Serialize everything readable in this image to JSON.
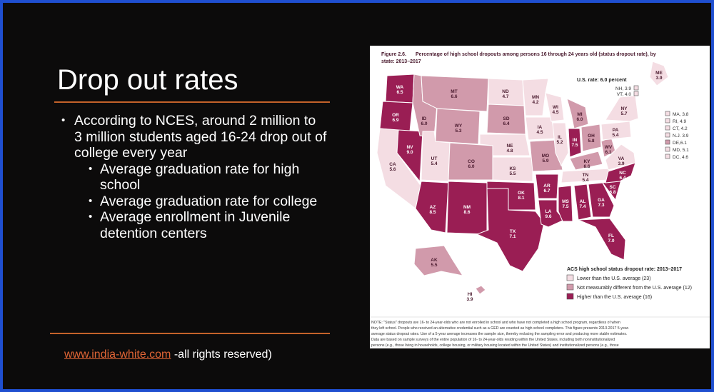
{
  "slide": {
    "title": "Drop out rates",
    "bullets": {
      "main": "According to NCES,  around 2 million to 3 million students aged 16-24 drop out of college every year",
      "sub": [
        "Average graduation rate for high school",
        "Average graduation rate for college",
        "Average enrollment in Juvenile detention centers"
      ]
    },
    "footer": {
      "link": "www.india-white.com",
      "text": " -all rights reserved)"
    }
  },
  "figure": {
    "caption_label": "Figure 2.6.",
    "caption_line1": "Percentage of high school dropouts among persons 16 through 24 years old (status dropout rate), by",
    "caption_line2": "state: 2013–2017",
    "us_rate": "U.S. rate: 6.0 percent",
    "legend_title": "ACS high school status dropout rate: 2013–2017",
    "legend_items": [
      "Lower than the U.S. average (23)",
      "Not measurably different from the U.S. average (12)",
      "Higher than the U.S. average (16)"
    ],
    "colors": {
      "lower": "#f4dde3",
      "not_different": "#d19aab",
      "higher": "#9a1e54",
      "border": "#ffffff"
    },
    "states": [
      {
        "abbr": "WA",
        "value": "6.5",
        "level": "higher"
      },
      {
        "abbr": "OR",
        "value": "6.9",
        "level": "higher"
      },
      {
        "abbr": "CA",
        "value": "5.6",
        "level": "lower"
      },
      {
        "abbr": "NV",
        "value": "9.0",
        "level": "higher"
      },
      {
        "abbr": "ID",
        "value": "6.0",
        "level": "not_different"
      },
      {
        "abbr": "MT",
        "value": "6.6",
        "level": "not_different"
      },
      {
        "abbr": "WY",
        "value": "5.3",
        "level": "not_different"
      },
      {
        "abbr": "UT",
        "value": "5.4",
        "level": "lower"
      },
      {
        "abbr": "AZ",
        "value": "8.5",
        "level": "higher"
      },
      {
        "abbr": "CO",
        "value": "6.0",
        "level": "not_different"
      },
      {
        "abbr": "NM",
        "value": "8.6",
        "level": "higher"
      },
      {
        "abbr": "ND",
        "value": "4.7",
        "level": "lower"
      },
      {
        "abbr": "SD",
        "value": "6.4",
        "level": "not_different"
      },
      {
        "abbr": "NE",
        "value": "4.8",
        "level": "lower"
      },
      {
        "abbr": "KS",
        "value": "5.5",
        "level": "lower"
      },
      {
        "abbr": "OK",
        "value": "8.1",
        "level": "higher"
      },
      {
        "abbr": "TX",
        "value": "7.1",
        "level": "higher"
      },
      {
        "abbr": "MN",
        "value": "4.2",
        "level": "lower"
      },
      {
        "abbr": "IA",
        "value": "4.5",
        "level": "lower"
      },
      {
        "abbr": "MO",
        "value": "5.9",
        "level": "not_different"
      },
      {
        "abbr": "AR",
        "value": "6.7",
        "level": "higher"
      },
      {
        "abbr": "LA",
        "value": "9.6",
        "level": "higher"
      },
      {
        "abbr": "WI",
        "value": "4.5",
        "level": "lower"
      },
      {
        "abbr": "IL",
        "value": "5.2",
        "level": "lower"
      },
      {
        "abbr": "MS",
        "value": "7.5",
        "level": "higher"
      },
      {
        "abbr": "MI",
        "value": "6.0",
        "level": "not_different"
      },
      {
        "abbr": "IN",
        "value": "7.5",
        "level": "higher"
      },
      {
        "abbr": "KY",
        "value": "6.6",
        "level": "not_different"
      },
      {
        "abbr": "TN",
        "value": "5.4",
        "level": "lower"
      },
      {
        "abbr": "AL",
        "value": "7.4",
        "level": "higher"
      },
      {
        "abbr": "OH",
        "value": "5.8",
        "level": "not_different"
      },
      {
        "abbr": "WV",
        "value": "6.1",
        "level": "not_different"
      },
      {
        "abbr": "GA",
        "value": "7.3",
        "level": "higher"
      },
      {
        "abbr": "FL",
        "value": "7.0",
        "level": "higher"
      },
      {
        "abbr": "SC",
        "value": "6.8",
        "level": "higher"
      },
      {
        "abbr": "NC",
        "value": "6.4",
        "level": "higher"
      },
      {
        "abbr": "VA",
        "value": "3.9",
        "level": "lower"
      },
      {
        "abbr": "PA",
        "value": "5.4",
        "level": "lower"
      },
      {
        "abbr": "NY",
        "value": "5.7",
        "level": "lower"
      },
      {
        "abbr": "ME",
        "value": "3.9",
        "level": "lower"
      },
      {
        "abbr": "AK",
        "value": "5.5",
        "level": "not_different"
      },
      {
        "abbr": "HI",
        "value": "3.9",
        "level": "not_different"
      }
    ],
    "small_states": [
      {
        "label": "NH, 3.9",
        "level": "lower"
      },
      {
        "label": "VT, 4.0",
        "level": "lower"
      },
      {
        "label": "MA, 3.8",
        "level": "lower"
      },
      {
        "label": "RI, 4.9",
        "level": "lower"
      },
      {
        "label": "CT, 4.2",
        "level": "lower"
      },
      {
        "label": "N.J. 3.9",
        "level": "lower"
      },
      {
        "label": "DE,6.1",
        "level": "not_different"
      },
      {
        "label": "MD, 5.1",
        "level": "lower"
      },
      {
        "label": "DC, 4.6",
        "level": "lower"
      }
    ],
    "note_lines": [
      "NOTE: \"Status\" dropouts are 16- to 24-year-olds who are not enrolled in school and who have not completed a high school program, regardless of when",
      "they left school. People who received an alternative credential such as a GED are counted as high school completers. This figure presents 2013-2017 5-year-",
      "average status dropout rates. Use of a 5-year average increases the sample size, thereby reducing the sampling error and producing more stable estimates.",
      "Data are based on sample surveys of the entire population of 16- to 24-year-olds residing within the United States, including both noninstitutionalized",
      "persons (e.g., those living in households, college housing, or military housing located within the United States) and institutionalized persons (e.g., those"
    ]
  }
}
